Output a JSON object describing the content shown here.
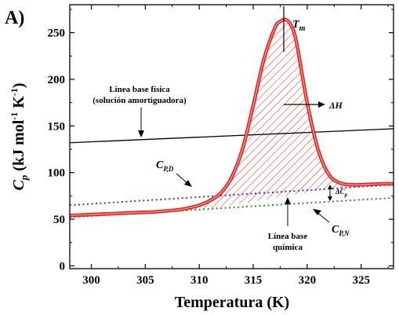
{
  "chart_data": {
    "type": "line",
    "panel_label": "A)",
    "xlabel": "Temperatura (K)",
    "ylabel_main": "C",
    "ylabel_sub": "p",
    "ylabel_units_a": " (kJ mol",
    "ylabel_units_sup1": "-1",
    "ylabel_units_b": " K",
    "ylabel_units_sup2": "-1",
    "ylabel_units_c": ")",
    "xlim": [
      298,
      328
    ],
    "ylim": [
      -3,
      280
    ],
    "xticks": [
      300,
      305,
      310,
      315,
      320,
      325
    ],
    "yticks": [
      0,
      50,
      100,
      150,
      200,
      250
    ],
    "grid": false,
    "colors": {
      "cp_curve": "#e8231f",
      "buffer_baseline": "#000000",
      "cp_d": "#3a3ad0",
      "cp_n": "#2f8f2f",
      "hatch": "#e8231f"
    },
    "series": [
      {
        "key": "cp_curve",
        "x": [
          298,
          300,
          302,
          304,
          306,
          308,
          309,
          310,
          311,
          312,
          313,
          314,
          315,
          316,
          317,
          317.5,
          318,
          318.5,
          319,
          320,
          321,
          322,
          323,
          324,
          325,
          326,
          327,
          328
        ],
        "y": [
          54,
          55,
          56,
          57,
          58,
          60,
          62,
          65,
          70,
          78,
          95,
          125,
          172,
          222,
          255,
          262,
          264,
          258,
          240,
          175,
          125,
          98,
          89,
          87,
          87,
          87.5,
          88,
          88
        ]
      },
      {
        "key": "buffer_baseline",
        "x": [
          298,
          328
        ],
        "y": [
          132,
          147
        ]
      },
      {
        "key": "cp_d",
        "x": [
          298,
          328
        ],
        "y": [
          65,
          87
        ]
      },
      {
        "key": "cp_n",
        "x": [
          298,
          328
        ],
        "y": [
          52,
          73
        ]
      }
    ],
    "annotations": {
      "tm_label": "T",
      "tm_sub": "m",
      "dh_label": "ΔH",
      "buffer_line1": "Línea base física",
      "buffer_line2": "(solución amortiguadora)",
      "cpd_label": "C",
      "cpd_sub": "P,D",
      "cpn_label": "C",
      "cpn_sub": "P,N",
      "dcp_label": "ΔC",
      "dcp_sub": "p",
      "chem_line1": "Línea base",
      "chem_line2": "química"
    }
  }
}
